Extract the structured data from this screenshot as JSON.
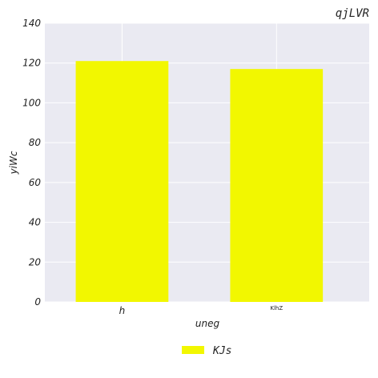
{
  "chart_data": {
    "type": "bar",
    "title": "qjLVR",
    "xlabel": "uneg",
    "ylabel": "yiWc",
    "categories": [
      "h",
      "KlhZ"
    ],
    "series": [
      {
        "name": "KJs",
        "values": [
          121,
          117
        ],
        "color": "#f2f700"
      }
    ],
    "ylim": [
      0,
      140
    ],
    "yticks": [
      "0",
      "20",
      "40",
      "60",
      "80",
      "100",
      "120",
      "140"
    ],
    "grid": true,
    "legend_position": "bottom-center",
    "plot_background": "#eaeaf2",
    "grid_color": "#ffffff"
  }
}
